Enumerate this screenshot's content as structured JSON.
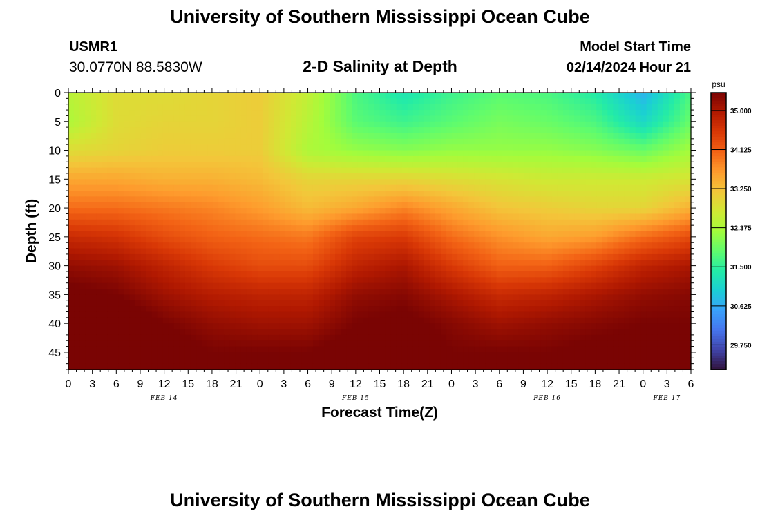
{
  "header": {
    "title": "University of Southern Mississippi Ocean Cube",
    "station_id": "USMR1",
    "coordinates": "30.0770N  88.5830W",
    "subtitle": "2-D Salinity at Depth",
    "model_start_label": "Model Start Time",
    "model_start_value": "02/14/2024 Hour 21"
  },
  "footer": {
    "title": "University of Southern Mississippi Ocean Cube"
  },
  "chart_data": {
    "type": "heatmap",
    "title": "2-D Salinity at Depth",
    "xlabel": "Forecast Time(Z)",
    "ylabel": "Depth (ft)",
    "x_hours": [
      0,
      6,
      12,
      18,
      24,
      30,
      36,
      42,
      48,
      54,
      60,
      66,
      72,
      78
    ],
    "x_tick_labels": [
      "0",
      "3",
      "6",
      "9",
      "12",
      "15",
      "18",
      "21",
      "0",
      "3",
      "6",
      "9",
      "12",
      "15",
      "18",
      "21",
      "0",
      "3",
      "6",
      "9",
      "12",
      "15",
      "18",
      "21",
      "0",
      "3",
      "6"
    ],
    "date_labels": [
      {
        "label": "FEB 14",
        "tick_index": 4
      },
      {
        "label": "FEB 15",
        "tick_index": 12
      },
      {
        "label": "FEB 16",
        "tick_index": 20
      },
      {
        "label": "FEB 17",
        "tick_index": 25
      }
    ],
    "depths_ft": [
      0,
      5,
      10,
      15,
      20,
      25,
      30,
      35,
      40,
      45,
      48
    ],
    "y_tick_labels": [
      "0",
      "5",
      "10",
      "15",
      "20",
      "25",
      "30",
      "35",
      "40",
      "45"
    ],
    "ylim": [
      0,
      48
    ],
    "salinity_psu": [
      [
        32.5,
        32.9,
        32.9,
        33.0,
        33.1,
        32.6,
        31.7,
        31.3,
        31.6,
        31.8,
        31.7,
        31.4,
        30.7,
        31.7
      ],
      [
        32.4,
        32.9,
        33.0,
        33.0,
        33.1,
        32.5,
        31.8,
        31.6,
        31.8,
        32.0,
        31.9,
        31.7,
        31.1,
        31.9
      ],
      [
        32.9,
        33.0,
        33.1,
        33.1,
        33.1,
        32.4,
        32.2,
        32.1,
        32.2,
        32.2,
        32.2,
        32.1,
        31.9,
        32.3
      ],
      [
        33.5,
        33.5,
        33.4,
        33.4,
        33.3,
        33.0,
        33.0,
        33.0,
        32.9,
        32.8,
        32.7,
        32.7,
        32.7,
        32.8
      ],
      [
        34.0,
        34.0,
        33.9,
        33.8,
        33.6,
        33.3,
        33.5,
        33.8,
        33.5,
        33.2,
        33.1,
        33.0,
        33.0,
        33.4
      ],
      [
        34.7,
        34.6,
        34.3,
        34.1,
        34.0,
        33.9,
        34.4,
        34.5,
        34.0,
        33.7,
        33.5,
        33.6,
        34.0,
        34.3
      ],
      [
        35.2,
        35.1,
        34.8,
        34.5,
        34.3,
        34.3,
        34.8,
        35.0,
        34.5,
        34.1,
        34.1,
        34.4,
        34.8,
        35.0
      ],
      [
        35.5,
        35.4,
        35.1,
        34.9,
        34.8,
        34.8,
        35.2,
        35.3,
        35.0,
        34.7,
        34.8,
        35.0,
        35.2,
        35.3
      ],
      [
        35.6,
        35.7,
        35.4,
        35.2,
        35.1,
        35.1,
        35.4,
        35.5,
        35.3,
        35.1,
        35.2,
        35.3,
        35.4,
        35.4
      ],
      [
        35.8,
        35.9,
        35.6,
        35.4,
        35.4,
        35.4,
        35.6,
        35.7,
        35.4,
        35.4,
        35.4,
        35.5,
        35.5,
        35.5
      ],
      [
        35.9,
        36.0,
        35.7,
        35.5,
        35.5,
        35.5,
        35.7,
        35.7,
        35.5,
        35.5,
        35.5,
        35.5,
        35.5,
        35.5
      ]
    ],
    "colorbar": {
      "unit": "psu",
      "range": [
        29.2,
        35.4
      ],
      "tick_labels": [
        "35.000",
        "34.125",
        "33.250",
        "32.375",
        "31.500",
        "30.625",
        "29.750"
      ],
      "tick_values": [
        35.0,
        34.125,
        33.25,
        32.375,
        31.5,
        30.625,
        29.75
      ],
      "colors": [
        "#30123b",
        "#4145ab",
        "#4675ed",
        "#39a2fc",
        "#1bcfd4",
        "#24eca6",
        "#61fc6c",
        "#a4fc3b",
        "#d1e834",
        "#f3c63a",
        "#fe9b2d",
        "#f36315",
        "#d93806",
        "#b11901",
        "#7a0403"
      ]
    }
  }
}
